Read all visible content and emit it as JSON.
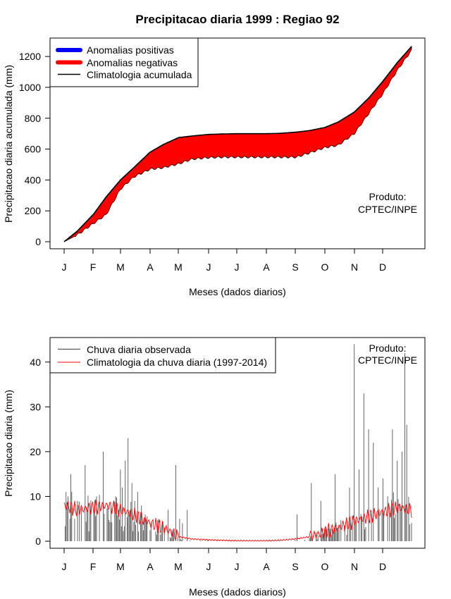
{
  "title": "Precipitacao diaria 1999 : Regiao 92",
  "watermark": [
    "Produto:",
    "CPTEC/INPE"
  ],
  "colors": {
    "positive": "#0000ff",
    "negative": "#ff0000",
    "climatology_line": "#000000",
    "observed_bar": "#555555",
    "daily_climatology": "#ff0000"
  },
  "chart_data": [
    {
      "type": "area",
      "ylabel": "Precipitacao diaria acumulada (mm)",
      "xlabel": "Meses (dados diarios)",
      "month_labels": [
        "J",
        "F",
        "M",
        "A",
        "M",
        "J",
        "J",
        "A",
        "S",
        "O",
        "N",
        "D"
      ],
      "xlim": [
        1,
        365
      ],
      "ylim": [
        0,
        1260
      ],
      "yticks": [
        0,
        200,
        400,
        600,
        800,
        1000,
        1200
      ],
      "legend": {
        "position": "top-left",
        "entries": [
          "Anomalias positivas",
          "Anomalias negativas",
          "Climatologia acumulada"
        ]
      },
      "climatology_cumulative": {
        "day": [
          1,
          15,
          32,
          45,
          60,
          74,
          91,
          105,
          121,
          135,
          152,
          167,
          182,
          196,
          213,
          227,
          244,
          258,
          274,
          288,
          305,
          320,
          335,
          350,
          365
        ],
        "mm": [
          0,
          70,
          180,
          290,
          400,
          480,
          580,
          630,
          675,
          685,
          695,
          698,
          700,
          700,
          700,
          702,
          710,
          720,
          740,
          775,
          840,
          930,
          1040,
          1160,
          1265
        ]
      },
      "observed_cumulative": {
        "day": [
          1,
          15,
          32,
          45,
          60,
          74,
          91,
          105,
          121,
          135,
          152,
          167,
          182,
          196,
          213,
          227,
          244,
          258,
          274,
          288,
          305,
          320,
          335,
          350,
          365
        ],
        "mm": [
          0,
          45,
          120,
          175,
          340,
          420,
          470,
          480,
          505,
          535,
          545,
          548,
          548,
          548,
          548,
          548,
          548,
          575,
          610,
          625,
          700,
          830,
          960,
          1110,
          1240
        ]
      }
    },
    {
      "type": "bar",
      "ylabel": "Precipitacao diaria (mm)",
      "xlabel": "Meses (dados diarios)",
      "month_labels": [
        "J",
        "F",
        "M",
        "A",
        "M",
        "J",
        "J",
        "A",
        "S",
        "O",
        "N",
        "D"
      ],
      "xlim": [
        1,
        365
      ],
      "ylim": [
        0,
        45
      ],
      "yticks": [
        0,
        10,
        20,
        30,
        40
      ],
      "legend": {
        "position": "top-left",
        "entries": [
          "Chuva diaria observada",
          "Climatologia da chuva diaria (1997-2014)"
        ]
      },
      "observed_daily_peaks": {
        "day": [
          3,
          8,
          15,
          23,
          28,
          35,
          42,
          47,
          55,
          60,
          62,
          65,
          68,
          72,
          75,
          78,
          82,
          86,
          92,
          100,
          110,
          118,
          122,
          125,
          130,
          245,
          260,
          270,
          285,
          300,
          305,
          310,
          315,
          320,
          325,
          330,
          335,
          340,
          345,
          350,
          355,
          358,
          360
        ],
        "mm": [
          11,
          15,
          9,
          17,
          7,
          10,
          20,
          8,
          10,
          16,
          12,
          18,
          23,
          13,
          9,
          11,
          8,
          6,
          4,
          5,
          7,
          17,
          5,
          4,
          7,
          6,
          13,
          9,
          15,
          12,
          44,
          16,
          33,
          25,
          22,
          12,
          14,
          10,
          25,
          18,
          20,
          42,
          26
        ]
      },
      "daily_climatology": {
        "day": [
          1,
          15,
          32,
          45,
          60,
          74,
          91,
          105,
          121,
          135,
          152,
          167,
          182,
          196,
          213,
          227,
          244,
          258,
          274,
          288,
          305,
          320,
          335,
          350,
          365
        ],
        "mm": [
          8,
          7,
          7.5,
          8,
          7,
          6,
          4,
          3,
          1,
          0.5,
          0.3,
          0.2,
          0.1,
          0.1,
          0.1,
          0.2,
          0.5,
          1,
          2,
          3,
          4.5,
          5.5,
          6.5,
          7.5,
          7
        ]
      }
    }
  ]
}
